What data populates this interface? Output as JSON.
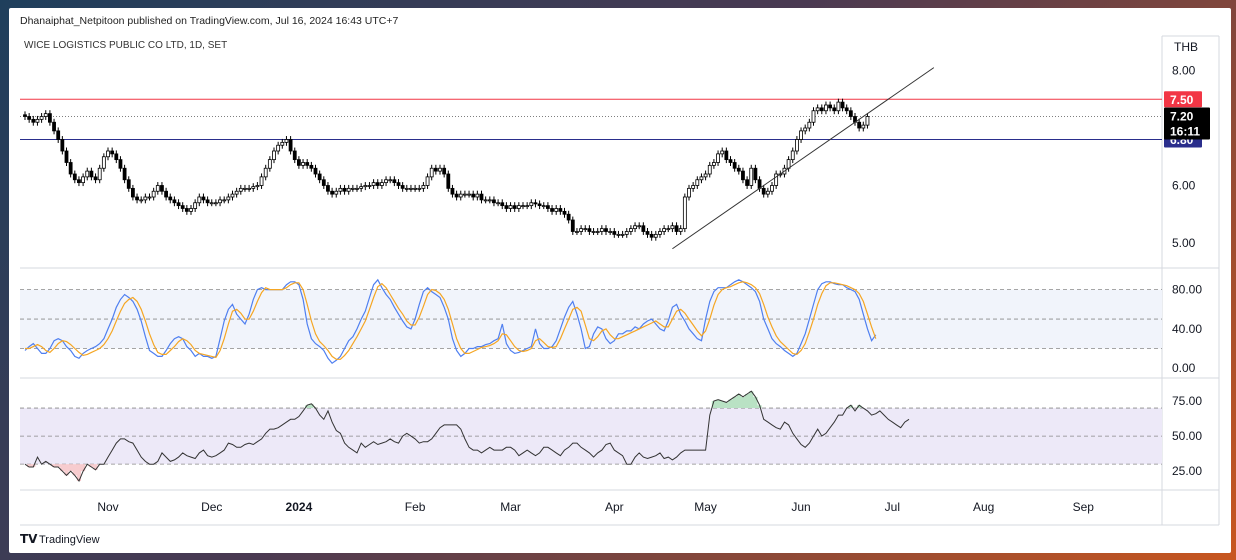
{
  "header": {
    "published": "Dhanaiphat_Netpitoon published on TradingView.com, Jul 16, 2024 16:43 UTC+7",
    "symbol": "WICE LOGISTICS PUBLIC CO LTD, 1D, SET",
    "currency": "THB"
  },
  "footer": {
    "brand": "TradingView"
  },
  "colors": {
    "up": "#ffffff",
    "down": "#000000",
    "wick": "#000000",
    "red_line": "#f23645",
    "blue_line": "#2a2e8c",
    "stoch_k": "#4f7ff0",
    "stoch_d": "#f5a623",
    "rsi": "#333333",
    "band_fill": "#ede9f8",
    "stoch_fill": "#f1f4fb"
  },
  "chart_data": [
    {
      "type": "candlestick",
      "name": "price",
      "x_axis_labels": [
        "Nov",
        "Dec",
        "2024",
        "Feb",
        "Mar",
        "Apr",
        "May",
        "Jun",
        "Jul",
        "Aug",
        "Sep"
      ],
      "y_ticks": [
        "8.00",
        "6.00",
        "5.00"
      ],
      "ylim": [
        4.6,
        8.6
      ],
      "levels": [
        {
          "label": "7.50",
          "value": 7.5,
          "color": "#f23645"
        },
        {
          "label": "6.80",
          "value": 6.8,
          "color": "#2a2e8c"
        }
      ],
      "last_price": {
        "label": "7.20",
        "countdown": "16:11",
        "value": 7.2
      },
      "trendline": {
        "from": {
          "bar": 156,
          "value": 4.9
        },
        "to": {
          "bar": 219,
          "value": 8.05
        }
      },
      "closes": [
        7.2,
        7.15,
        7.1,
        7.15,
        7.2,
        7.25,
        7.1,
        6.95,
        6.8,
        6.6,
        6.4,
        6.2,
        6.1,
        6.05,
        6.15,
        6.25,
        6.15,
        6.1,
        6.3,
        6.5,
        6.6,
        6.55,
        6.45,
        6.3,
        6.1,
        5.95,
        5.8,
        5.75,
        5.75,
        5.8,
        5.8,
        5.9,
        6.0,
        5.9,
        5.8,
        5.75,
        5.7,
        5.65,
        5.6,
        5.55,
        5.6,
        5.7,
        5.8,
        5.75,
        5.7,
        5.7,
        5.7,
        5.75,
        5.75,
        5.8,
        5.85,
        5.9,
        5.95,
        5.95,
        5.95,
        5.98,
        6.0,
        6.15,
        6.3,
        6.45,
        6.6,
        6.7,
        6.75,
        6.8,
        6.6,
        6.45,
        6.35,
        6.4,
        6.35,
        6.3,
        6.2,
        6.1,
        6.0,
        5.9,
        5.85,
        5.9,
        5.95,
        5.9,
        5.95,
        5.95,
        5.95,
        5.98,
        6.0,
        6.0,
        6.05,
        6.0,
        6.05,
        6.1,
        6.1,
        6.05,
        6.0,
        5.95,
        5.95,
        5.95,
        5.95,
        5.95,
        6.0,
        6.15,
        6.3,
        6.25,
        6.3,
        6.2,
        5.95,
        5.85,
        5.8,
        5.85,
        5.85,
        5.85,
        5.8,
        5.85,
        5.75,
        5.75,
        5.75,
        5.7,
        5.7,
        5.65,
        5.6,
        5.65,
        5.6,
        5.65,
        5.65,
        5.65,
        5.7,
        5.68,
        5.65,
        5.65,
        5.6,
        5.55,
        5.6,
        5.55,
        5.5,
        5.4,
        5.2,
        5.2,
        5.25,
        5.25,
        5.2,
        5.2,
        5.2,
        5.25,
        5.2,
        5.2,
        5.15,
        5.15,
        5.15,
        5.2,
        5.25,
        5.3,
        5.3,
        5.2,
        5.15,
        5.1,
        5.15,
        5.2,
        5.25,
        5.25,
        5.3,
        5.2,
        5.25,
        5.8,
        5.95,
        6.0,
        6.1,
        6.15,
        6.2,
        6.35,
        6.4,
        6.55,
        6.6,
        6.45,
        6.4,
        6.3,
        6.25,
        6.1,
        6.0,
        6.3,
        6.1,
        5.95,
        5.85,
        5.9,
        6.0,
        6.2,
        6.2,
        6.3,
        6.45,
        6.6,
        6.8,
        6.95,
        7.0,
        7.1,
        7.3,
        7.35,
        7.3,
        7.4,
        7.35,
        7.3,
        7.45,
        7.35,
        7.3,
        7.2,
        7.1,
        7.0,
        7.05,
        7.2
      ]
    },
    {
      "type": "line",
      "name": "stochastic",
      "y_ticks": [
        "80.00",
        "40.00",
        "0.00"
      ],
      "ylim": [
        -8,
        100
      ],
      "bands": [
        80,
        50,
        20
      ],
      "series": [
        {
          "key": "k",
          "values": [
            18,
            22,
            25,
            20,
            15,
            15,
            20,
            28,
            30,
            28,
            22,
            18,
            12,
            10,
            15,
            18,
            20,
            22,
            25,
            30,
            40,
            50,
            62,
            70,
            75,
            72,
            68,
            60,
            48,
            32,
            18,
            15,
            12,
            12,
            18,
            25,
            30,
            32,
            30,
            22,
            18,
            12,
            15,
            12,
            12,
            10,
            12,
            30,
            48,
            60,
            65,
            55,
            50,
            45,
            55,
            70,
            80,
            82,
            80,
            80,
            80,
            80,
            80,
            85,
            88,
            88,
            85,
            70,
            45,
            30,
            25,
            22,
            18,
            10,
            5,
            8,
            12,
            20,
            28,
            32,
            40,
            50,
            58,
            72,
            85,
            90,
            82,
            75,
            70,
            62,
            55,
            48,
            42,
            40,
            50,
            65,
            78,
            82,
            78,
            75,
            72,
            62,
            50,
            30,
            18,
            12,
            15,
            20,
            20,
            22,
            22,
            24,
            25,
            28,
            30,
            45,
            25,
            18,
            15,
            16,
            18,
            20,
            22,
            40,
            25,
            20,
            20,
            22,
            28,
            40,
            52,
            62,
            68,
            55,
            40,
            20,
            22,
            35,
            42,
            40,
            30,
            25,
            28,
            35,
            35,
            38,
            38,
            42,
            40,
            45,
            48,
            50,
            45,
            40,
            38,
            48,
            62,
            65,
            55,
            48,
            40,
            35,
            30,
            28,
            50,
            68,
            78,
            82,
            82,
            82,
            85,
            88,
            90,
            88,
            85,
            82,
            78,
            68,
            50,
            40,
            30,
            25,
            22,
            18,
            15,
            12,
            15,
            25,
            35,
            50,
            65,
            80,
            86,
            88,
            88,
            86,
            85,
            85,
            82,
            80,
            78,
            70,
            55,
            40,
            28,
            34
          ]
        },
        {
          "key": "d",
          "values": [
            20,
            20,
            22,
            24,
            22,
            18,
            16,
            20,
            25,
            28,
            27,
            24,
            20,
            16,
            13,
            14,
            16,
            18,
            20,
            24,
            30,
            38,
            48,
            58,
            66,
            70,
            72,
            68,
            60,
            48,
            35,
            24,
            16,
            14,
            14,
            18,
            22,
            27,
            30,
            28,
            24,
            18,
            15,
            14,
            13,
            12,
            11,
            18,
            30,
            45,
            58,
            60,
            56,
            50,
            50,
            58,
            68,
            77,
            82,
            80,
            80,
            80,
            80,
            82,
            85,
            87,
            87,
            80,
            65,
            48,
            35,
            27,
            23,
            18,
            12,
            9,
            9,
            13,
            18,
            25,
            32,
            40,
            48,
            60,
            72,
            83,
            86,
            82,
            75,
            68,
            61,
            55,
            48,
            44,
            44,
            52,
            63,
            75,
            80,
            79,
            76,
            70,
            60,
            45,
            30,
            20,
            15,
            15,
            17,
            19,
            21,
            22,
            23,
            25,
            28,
            35,
            34,
            28,
            22,
            18,
            17,
            18,
            20,
            28,
            30,
            26,
            22,
            21,
            22,
            30,
            40,
            50,
            60,
            62,
            58,
            44,
            30,
            28,
            32,
            38,
            40,
            34,
            30,
            30,
            32,
            34,
            36,
            38,
            40,
            42,
            44,
            46,
            48,
            45,
            42,
            42,
            50,
            58,
            60,
            56,
            50,
            44,
            38,
            33,
            38,
            50,
            64,
            75,
            80,
            82,
            83,
            85,
            87,
            88,
            87,
            85,
            82,
            76,
            65,
            52,
            42,
            33,
            27,
            23,
            19,
            15,
            14,
            18,
            25,
            37,
            50,
            65,
            76,
            84,
            87,
            87,
            86,
            85,
            84,
            82,
            80,
            76,
            68,
            55,
            42,
            30
          ]
        }
      ]
    },
    {
      "type": "line",
      "name": "rsi",
      "y_ticks": [
        "75.00",
        "50.00",
        "25.00"
      ],
      "ylim": [
        13,
        90
      ],
      "bands": [
        70,
        50,
        30
      ],
      "values": [
        30,
        28,
        28,
        35,
        30,
        32,
        30,
        28,
        28,
        25,
        22,
        25,
        22,
        18,
        25,
        30,
        28,
        26,
        30,
        30,
        35,
        40,
        45,
        48,
        48,
        46,
        45,
        40,
        35,
        32,
        30,
        30,
        32,
        38,
        35,
        32,
        33,
        35,
        38,
        36,
        35,
        34,
        38,
        40,
        36,
        35,
        36,
        38,
        40,
        45,
        44,
        42,
        42,
        44,
        45,
        44,
        46,
        48,
        52,
        55,
        55,
        56,
        58,
        60,
        62,
        62,
        64,
        68,
        72,
        73,
        70,
        65,
        62,
        68,
        60,
        54,
        52,
        45,
        42,
        40,
        38,
        45,
        42,
        44,
        46,
        44,
        45,
        46,
        48,
        46,
        45,
        50,
        52,
        50,
        48,
        45,
        46,
        46,
        48,
        52,
        56,
        58,
        58,
        58,
        58,
        55,
        48,
        42,
        40,
        40,
        38,
        40,
        42,
        40,
        40,
        40,
        42,
        42,
        40,
        36,
        38,
        40,
        38,
        36,
        38,
        42,
        42,
        40,
        38,
        36,
        40,
        42,
        45,
        45,
        42,
        40,
        38,
        35,
        38,
        40,
        44,
        45,
        40,
        38,
        36,
        30,
        30,
        35,
        38,
        35,
        34,
        35,
        36,
        38,
        34,
        35,
        33,
        35,
        38,
        40,
        40,
        40,
        40,
        40,
        40,
        65,
        75,
        76,
        75,
        74,
        76,
        78,
        80,
        78,
        80,
        82,
        78,
        72,
        62,
        60,
        58,
        56,
        55,
        60,
        58,
        52,
        48,
        44,
        42,
        45,
        50,
        55,
        50,
        52,
        56,
        60,
        65,
        65,
        70,
        72,
        68,
        72,
        70,
        68,
        65,
        66,
        68,
        65,
        62,
        60,
        58,
        56,
        60,
        62
      ]
    }
  ]
}
